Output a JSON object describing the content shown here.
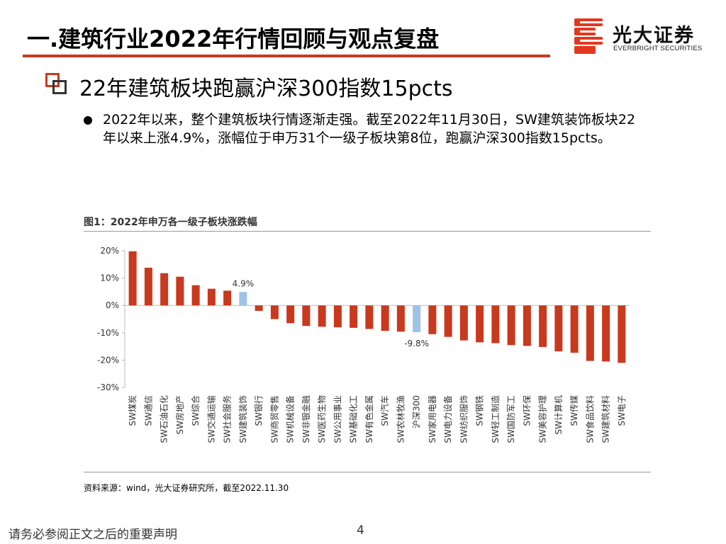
{
  "header": {
    "title": "一.建筑行业2022年行情回顾与观点复盘"
  },
  "logo": {
    "cn": "光大证券",
    "en": "EVERBRIGHT SECURITIES",
    "brand_color": "#e3381f"
  },
  "subtitle": "22年建筑板块跑赢沪深300指数15pcts",
  "bullet": "2022年以来，整个建筑板块行情逐渐走强。截至2022年11月30日，SW建筑装饰板块22年以来上涨4.9%，涨幅位于申万31个一级子板块第8位，跑赢沪深300指数15pcts。",
  "chart_title": "图1：2022年申万各一级子板块涨跌幅",
  "chart_data": {
    "type": "bar",
    "title": "图1：2022年申万各一级子板块涨跌幅",
    "categories": [
      "SW煤炭",
      "SW通信",
      "SW石油石化",
      "SW房地产",
      "SW综合",
      "SW交通运输",
      "SW社会服务",
      "SW建筑装饰",
      "SW银行",
      "SW商贸零售",
      "SW机械设备",
      "SW非银金融",
      "SW医药生物",
      "SW公用事业",
      "SW基础化工",
      "SW有色金属",
      "SW汽车",
      "SW农林牧渔",
      "沪深300",
      "SW家用电器",
      "SW电力设备",
      "SW纺织服饰",
      "SW钢铁",
      "SW轻工制造",
      "SW国防军工",
      "SW环保",
      "SW美容护理",
      "SW计算机",
      "SW传媒",
      "SW食品饮料",
      "SW建筑材料",
      "SW电子"
    ],
    "values": [
      19.8,
      13.8,
      11.8,
      10.5,
      7.4,
      6.1,
      5.4,
      4.9,
      -2.0,
      -5.0,
      -6.5,
      -7.5,
      -7.8,
      -8.0,
      -8.2,
      -8.6,
      -9.3,
      -9.6,
      -9.8,
      -10.5,
      -11.5,
      -12.8,
      -13.5,
      -13.8,
      -14.5,
      -14.8,
      -15.2,
      -16.8,
      -17.3,
      -20.3,
      -20.5,
      -21.0
    ],
    "highlighted": [
      "SW建筑装饰",
      "沪深300"
    ],
    "annotations": [
      {
        "category": "SW建筑装饰",
        "label": "4.9%"
      },
      {
        "category": "沪深300",
        "label": "-9.8%"
      }
    ],
    "ylim": [
      -30,
      20
    ],
    "yticks": [
      "20%",
      "10%",
      "0%",
      "-10%",
      "-20%",
      "-30%"
    ],
    "xlabel": "",
    "ylabel": "",
    "grid": false,
    "colors": {
      "default": "#c8391e",
      "highlight": "#9dc3e6"
    }
  },
  "source": "资料来源：wind，光大证券研究所，截至2022.11.30",
  "footer": {
    "disclaimer": "请务必参阅正文之后的重要声明",
    "page": "4"
  },
  "colors": {
    "accent": "#c8391e",
    "icon": "#c8391e"
  }
}
